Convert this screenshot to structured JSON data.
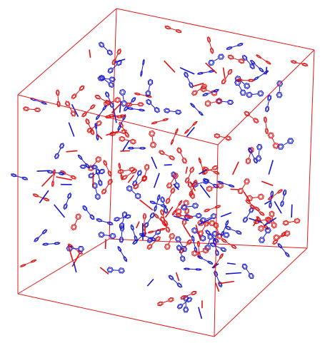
{
  "colors": {
    "background": "#ffffff",
    "box_edges": "#e11a1a",
    "species_a": "#e01010",
    "species_b": "#1515d0"
  },
  "scene": {
    "type": "molecular-simulation-box-3d",
    "projection": "perspective",
    "visible_text": []
  },
  "legend": []
}
